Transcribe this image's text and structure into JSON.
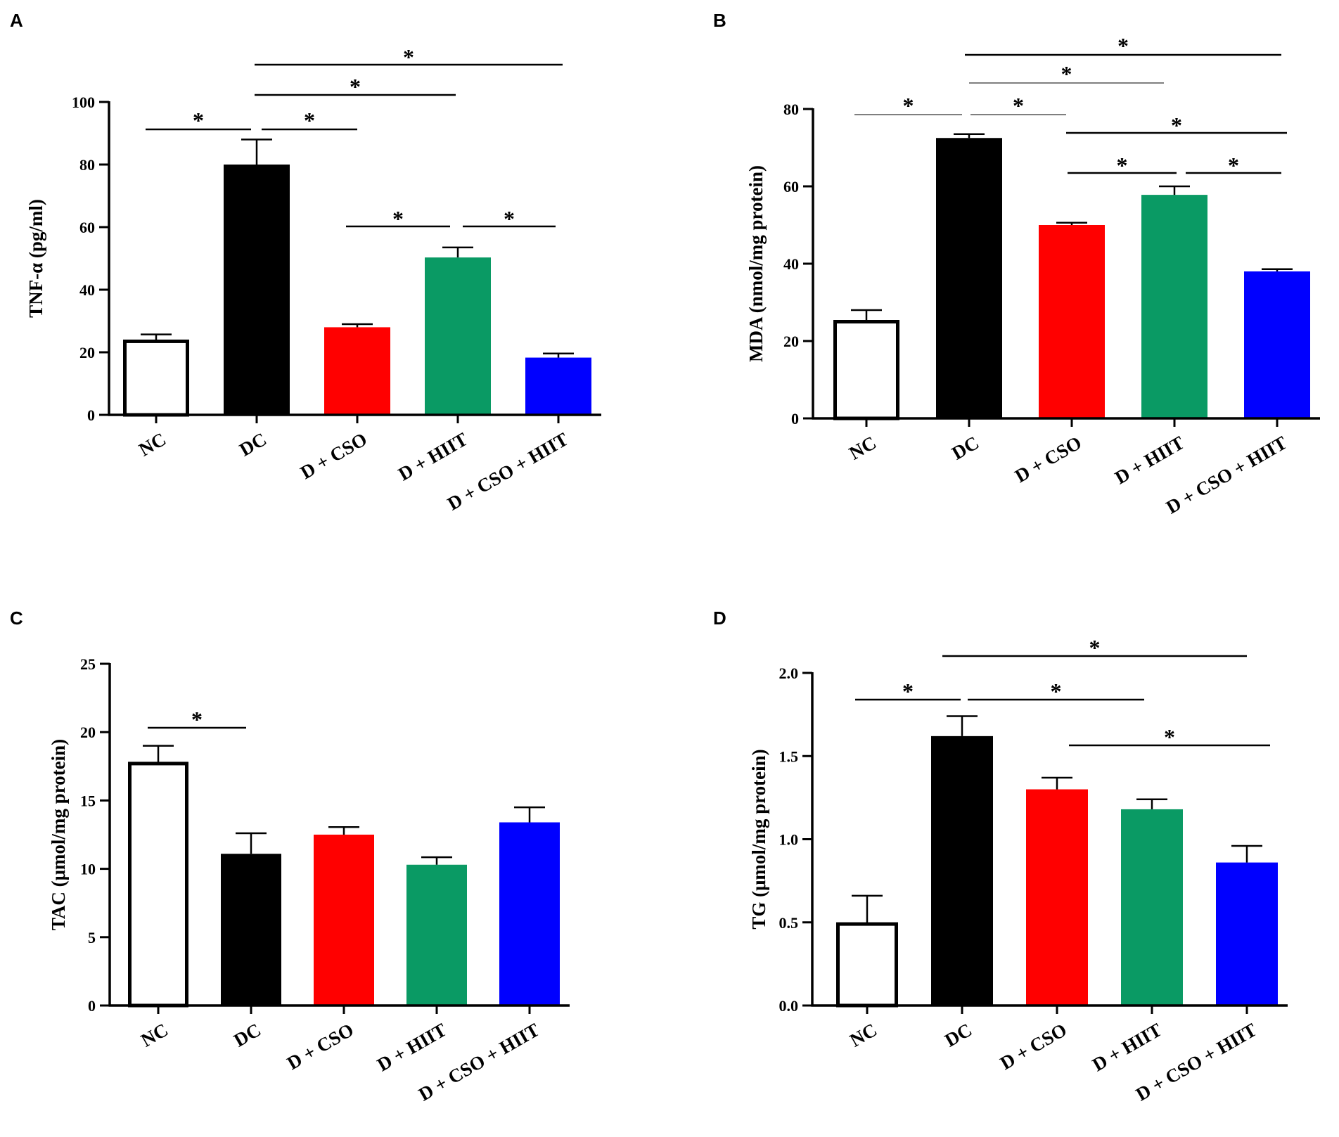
{
  "chart_data": [
    {
      "panel": "A",
      "type": "bar",
      "categories": [
        "NC",
        "DC",
        "D + CSO",
        "D + HIIT",
        "D + CSO + HIIT"
      ],
      "values": [
        23.5,
        80,
        28,
        50.3,
        18.3
      ],
      "errors": [
        2.2,
        8,
        1,
        3.2,
        1.3
      ],
      "colors": [
        "#ffffff",
        "#000000",
        "#ff0000",
        "#0a9a64",
        "#0000ff"
      ],
      "ylabel": "TNF-α (pg/ml)",
      "ylim": [
        0,
        100
      ],
      "yticks": [
        0,
        20,
        40,
        60,
        80,
        100
      ],
      "significance": [
        {
          "from": 0,
          "to": 1,
          "label": "*"
        },
        {
          "from": 1,
          "to": 2,
          "label": "*"
        },
        {
          "from": 1,
          "to": 3,
          "label": "*"
        },
        {
          "from": 1,
          "to": 4,
          "label": "*"
        },
        {
          "from": 2,
          "to": 3,
          "label": "*"
        },
        {
          "from": 3,
          "to": 4,
          "label": "*"
        }
      ]
    },
    {
      "panel": "B",
      "type": "bar",
      "categories": [
        "NC",
        "DC",
        "D + CSO",
        "D + HIIT",
        "D + CSO + HIIT"
      ],
      "values": [
        25,
        72.5,
        50,
        57.8,
        38
      ],
      "errors": [
        3,
        1,
        0.6,
        2.2,
        0.6
      ],
      "colors": [
        "#ffffff",
        "#000000",
        "#ff0000",
        "#0a9a64",
        "#0000ff"
      ],
      "ylabel": "MDA  (nmol/mg protein)",
      "ylim": [
        0,
        80
      ],
      "yticks": [
        0,
        20,
        40,
        60,
        80
      ],
      "significance": [
        {
          "from": 0,
          "to": 1,
          "label": "*"
        },
        {
          "from": 1,
          "to": 2,
          "label": "*"
        },
        {
          "from": 1,
          "to": 3,
          "label": "*"
        },
        {
          "from": 1,
          "to": 4,
          "label": "*"
        },
        {
          "from": 2,
          "to": 4,
          "label": "*"
        },
        {
          "from": 2,
          "to": 3,
          "label": "*"
        },
        {
          "from": 3,
          "to": 4,
          "label": "*"
        }
      ]
    },
    {
      "panel": "C",
      "type": "bar",
      "categories": [
        "NC",
        "DC",
        "D + CSO",
        "D + HIIT",
        "D + CSO + HIIT"
      ],
      "values": [
        17.7,
        11.1,
        12.5,
        10.3,
        13.4
      ],
      "errors": [
        1.3,
        1.5,
        0.55,
        0.55,
        1.1
      ],
      "colors": [
        "#ffffff",
        "#000000",
        "#ff0000",
        "#0a9a64",
        "#0000ff"
      ],
      "ylabel": "TAC (μmol/mg protein)",
      "ylim": [
        0,
        25
      ],
      "yticks": [
        0,
        5,
        10,
        15,
        20,
        25
      ],
      "significance": [
        {
          "from": 0,
          "to": 1,
          "label": "*"
        }
      ]
    },
    {
      "panel": "D",
      "type": "bar",
      "categories": [
        "NC",
        "DC",
        "D + CSO",
        "D + HIIT",
        "D + CSO + HIIT"
      ],
      "values": [
        0.49,
        1.62,
        1.3,
        1.18,
        0.86
      ],
      "errors": [
        0.17,
        0.12,
        0.07,
        0.06,
        0.1
      ],
      "colors": [
        "#ffffff",
        "#000000",
        "#ff0000",
        "#0a9a64",
        "#0000ff"
      ],
      "ylabel": "TG (μmol/mg protein)",
      "ylim": [
        0,
        2.0
      ],
      "yticks": [
        "0.0",
        "0.5",
        "1.0",
        "1.5",
        "2.0"
      ],
      "significance": [
        {
          "from": 0,
          "to": 1,
          "label": "*"
        },
        {
          "from": 1,
          "to": 4,
          "label": "*"
        },
        {
          "from": 1,
          "to": 3,
          "label": "*"
        },
        {
          "from": 2,
          "to": 4,
          "label": "*"
        }
      ]
    }
  ]
}
